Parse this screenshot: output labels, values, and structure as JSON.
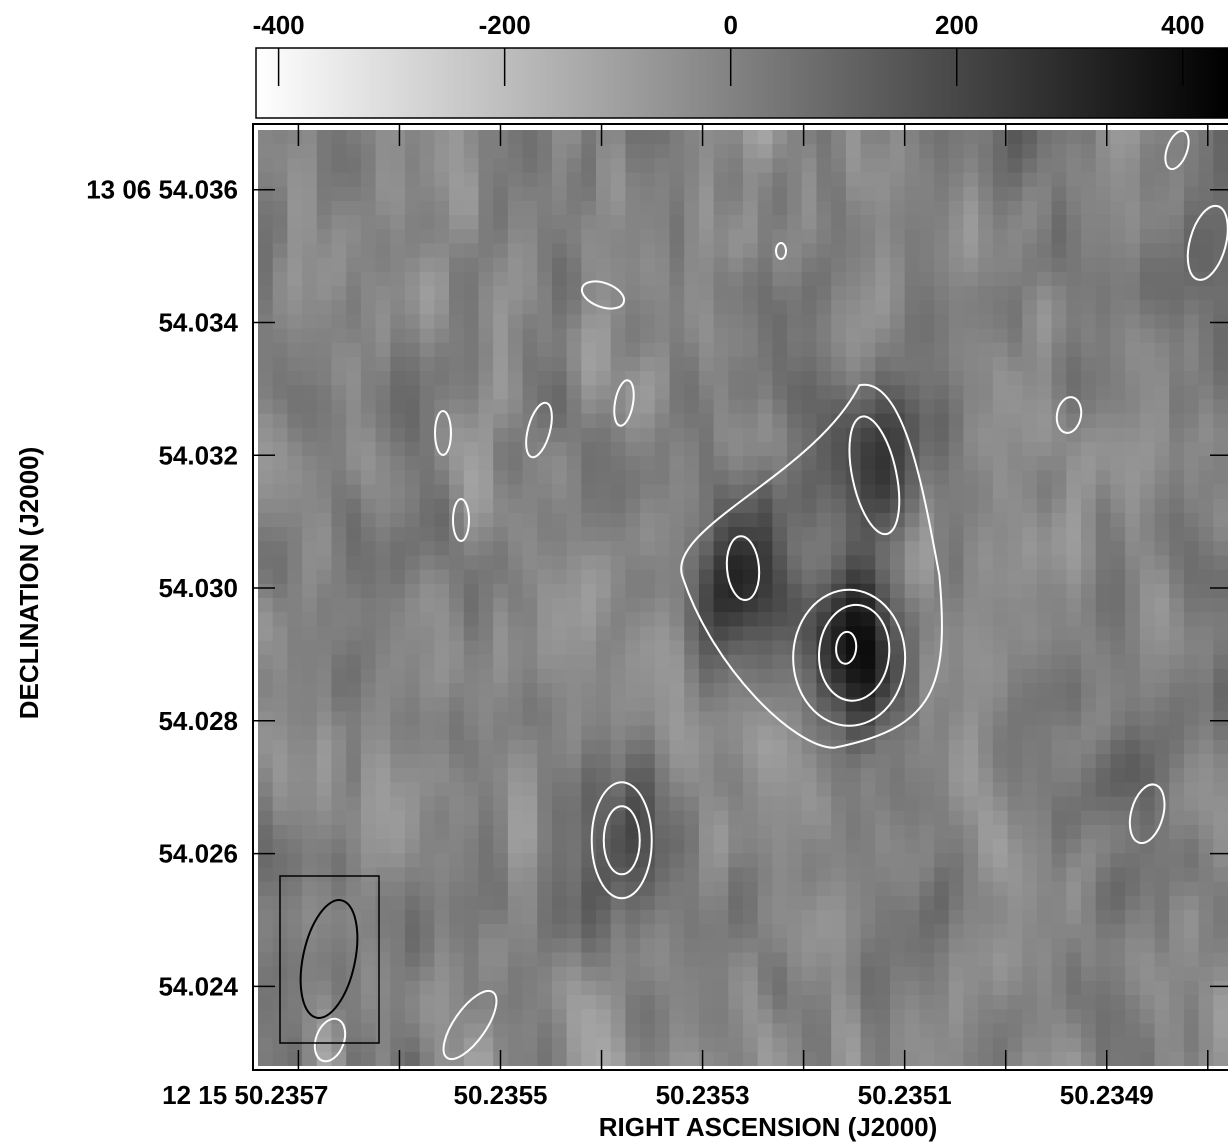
{
  "chart_data": {
    "type": "heatmap",
    "title": "",
    "colorbar": {
      "ticks": [
        "-400",
        "-200",
        "0",
        "200",
        "400"
      ],
      "values": [
        -400,
        -200,
        0,
        200,
        400
      ],
      "range": [
        -420,
        440
      ],
      "colormap": "grayscale (white = low, black = high)"
    },
    "xlabel": "RIGHT ASCENSION (J2000)",
    "ylabel": "DECLINATION (J2000)",
    "x_ticks": [
      "12 15 50.2357",
      "50.2355",
      "50.2353",
      "50.2351",
      "50.2349"
    ],
    "y_ticks": [
      "13 06 54.036",
      "54.034",
      "54.032",
      "54.030",
      "54.028",
      "54.026",
      "54.024"
    ],
    "x_tick_values_sec": [
      50.2357,
      50.2355,
      50.2353,
      50.2351,
      50.2349
    ],
    "y_tick_values_arcsec": [
      54.036,
      54.034,
      54.032,
      54.03,
      54.028,
      54.026,
      54.024
    ],
    "x_range_sec": [
      50.23574,
      50.23478
    ],
    "y_range_arcsec": [
      54.0228,
      54.0369
    ],
    "source": {
      "components": [
        {
          "ra": 50.23515,
          "dec": 54.0291,
          "peak": 420
        },
        {
          "ra": 50.23526,
          "dec": 54.0303,
          "peak": 330
        },
        {
          "ra": 50.23513,
          "dec": 54.032,
          "peak": 240
        }
      ]
    },
    "secondary_sources": [
      {
        "ra": 50.23538,
        "dec": 54.0262,
        "peak": 200
      },
      {
        "ra": 50.23486,
        "dec": 54.0266,
        "peak": 110
      },
      {
        "ra": 50.2348,
        "dec": 54.0352,
        "peak": 110
      }
    ],
    "contours": "white contours at increasing flux levels",
    "beam": {
      "shape": "ellipse",
      "location": "bottom-left"
    }
  }
}
